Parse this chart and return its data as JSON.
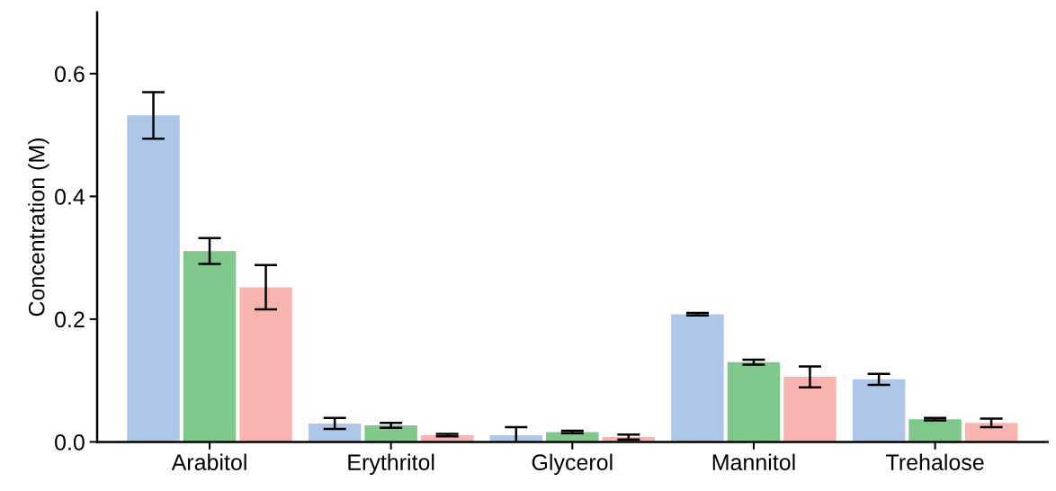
{
  "chart_data": {
    "type": "bar",
    "ylabel": "Concentration (M)",
    "categories": [
      "Arabitol",
      "Erythritol",
      "Glycerol",
      "Mannitol",
      "Trehalose"
    ],
    "series": [
      {
        "color": "#aec7e8",
        "values": [
          0.532,
          0.03,
          0.011,
          0.208,
          0.102
        ],
        "errors": [
          0.038,
          0.009,
          0.013,
          0.002,
          0.009
        ]
      },
      {
        "color": "#7fc78a",
        "values": [
          0.311,
          0.027,
          0.016,
          0.13,
          0.037
        ],
        "errors": [
          0.021,
          0.004,
          0.002,
          0.004,
          0.002
        ]
      },
      {
        "color": "#f8b4b0",
        "values": [
          0.252,
          0.011,
          0.008,
          0.106,
          0.031
        ],
        "errors": [
          0.036,
          0.002,
          0.004,
          0.017,
          0.007
        ]
      }
    ],
    "ylim": [
      0,
      0.7
    ],
    "yticks": [
      {
        "value": 0,
        "label": "0.0"
      },
      {
        "value": 0.2,
        "label": "0.2"
      },
      {
        "value": 0.4,
        "label": "0.4"
      },
      {
        "value": 0.6,
        "label": "0.6"
      }
    ],
    "grid": false,
    "legend": false
  }
}
